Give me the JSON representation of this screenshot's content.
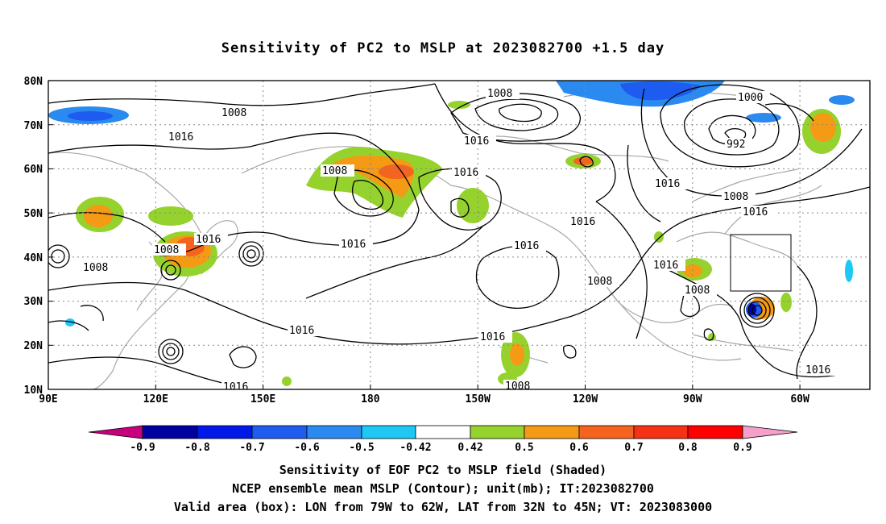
{
  "title": "Sensitivity of PC2 to MSLP at 2023082700 +1.5 day",
  "map": {
    "lat_ticks": [
      "80N",
      "70N",
      "60N",
      "50N",
      "40N",
      "30N",
      "20N",
      "10N"
    ],
    "lon_ticks": [
      "90E",
      "120E",
      "150E",
      "180",
      "150W",
      "120W",
      "90W",
      "60W"
    ],
    "valid_box": {
      "lon_from": "79W",
      "lon_to": "62W",
      "lat_from": "32N",
      "lat_to": "45N"
    }
  },
  "contour_labels": [
    "1008",
    "1016",
    "1008",
    "1008",
    "1016",
    "1008",
    "1016",
    "1016",
    "1016",
    "1016",
    "1016",
    "1016",
    "1008",
    "1016",
    "1008",
    "1016",
    "1016",
    "1000",
    "992",
    "1016",
    "1008",
    "1016",
    "1008",
    "1016",
    "1008",
    "1016"
  ],
  "colorbar": {
    "levels": [
      "-0.9",
      "-0.8",
      "-0.7",
      "-0.6",
      "-0.5",
      "-0.42",
      "0.42",
      "0.5",
      "0.6",
      "0.7",
      "0.8",
      "0.9"
    ],
    "colors": [
      "#c7007e",
      "#0000a0",
      "#0018e8",
      "#1e5cf0",
      "#2a8af0",
      "#1ec8f5",
      "#ffffff",
      "#96d22d",
      "#f59a14",
      "#f5641e",
      "#f53214",
      "#ff0000",
      "#f5a0c8"
    ]
  },
  "footer": {
    "line1": "Sensitivity of EOF PC2 to MSLP field (Shaded)",
    "line2": "NCEP ensemble mean MSLP (Contour); unit(mb); IT:2023082700",
    "line3": "Valid area (box): LON from 79W to 62W, LAT from 32N to 45N; VT: 2023083000"
  }
}
